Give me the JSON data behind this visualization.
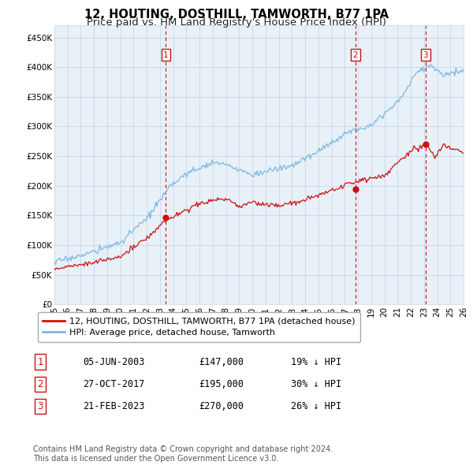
{
  "title": "12, HOUTING, DOSTHILL, TAMWORTH, B77 1PA",
  "subtitle": "Price paid vs. HM Land Registry's House Price Index (HPI)",
  "ytick_labels": [
    "£0",
    "£50K",
    "£100K",
    "£150K",
    "£200K",
    "£250K",
    "£300K",
    "£350K",
    "£400K",
    "£450K"
  ],
  "yticks": [
    0,
    50000,
    100000,
    150000,
    200000,
    250000,
    300000,
    350000,
    400000,
    450000
  ],
  "xlim_start": 1995.0,
  "xlim_end": 2026.0,
  "ylim": [
    0,
    470000
  ],
  "hpi_color": "#7cb8e0",
  "price_color": "#cc1111",
  "vline_color": "#cc1111",
  "grid_color": "#c8d8e8",
  "bg_color": "#e8f0f8",
  "sale_dates": [
    2003.44,
    2017.82,
    2023.13
  ],
  "sale_prices": [
    147000,
    195000,
    270000
  ],
  "sale_labels": [
    "1",
    "2",
    "3"
  ],
  "legend_line1": "12, HOUTING, DOSTHILL, TAMWORTH, B77 1PA (detached house)",
  "legend_line2": "HPI: Average price, detached house, Tamworth",
  "table_rows": [
    [
      "1",
      "05-JUN-2003",
      "£147,000",
      "19% ↓ HPI"
    ],
    [
      "2",
      "27-OCT-2017",
      "£195,000",
      "30% ↓ HPI"
    ],
    [
      "3",
      "21-FEB-2023",
      "£270,000",
      "26% ↓ HPI"
    ]
  ],
  "footer": "Contains HM Land Registry data © Crown copyright and database right 2024.\nThis data is licensed under the Open Government Licence v3.0.",
  "title_fontsize": 10.5,
  "subtitle_fontsize": 9.5,
  "tick_fontsize": 7.5,
  "legend_fontsize": 8.0,
  "table_fontsize": 8.5,
  "footer_fontsize": 7.0
}
